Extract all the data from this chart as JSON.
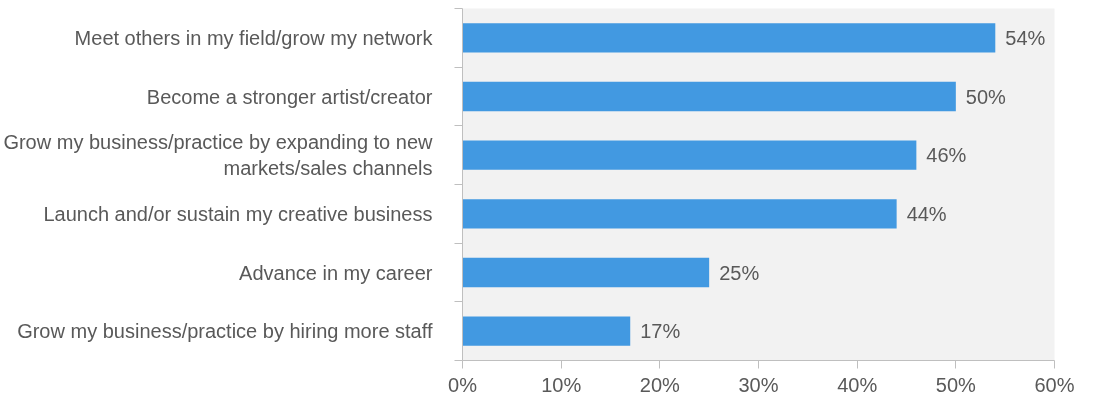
{
  "chart_data": {
    "type": "bar",
    "orientation": "horizontal",
    "categories": [
      "Meet others in my field/grow my network",
      "Become a stronger artist/creator",
      "Grow my business/practice by expanding to new markets/sales channels",
      "Launch and/or sustain my creative business",
      "Advance in my career",
      "Grow my business/practice by hiring more staff"
    ],
    "values": [
      54,
      50,
      46,
      44,
      25,
      17
    ],
    "value_labels": [
      "54%",
      "50%",
      "46%",
      "44%",
      "25%",
      "17%"
    ],
    "color": "#4299e1",
    "xlim": [
      0,
      60
    ],
    "xticks": [
      {
        "value": 0,
        "label": "0%"
      },
      {
        "value": 10,
        "label": "10%"
      },
      {
        "value": 20,
        "label": "20%"
      },
      {
        "value": 30,
        "label": "30%"
      },
      {
        "value": 40,
        "label": "40%"
      },
      {
        "value": 50,
        "label": "50%"
      },
      {
        "value": 60,
        "label": "60%"
      }
    ],
    "grid": false
  }
}
